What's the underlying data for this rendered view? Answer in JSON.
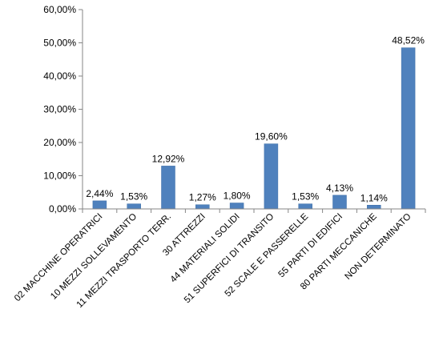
{
  "chart_data": {
    "type": "bar",
    "categories": [
      "02 MACCHINE OPERATRICI",
      "10 MEZZI SOLLEVAMENTO",
      "11 MEZZI TRASPORTO TERR.",
      "30 ATTREZZI",
      "44 MATERIALI SOLIDI",
      "51 SUPERFICI DI TRANSITO",
      "52 SCALE E PASSERELLE",
      "55 PARTI DI EDIFICI",
      "80 PARTI MECCANICHE",
      "NON DETERMINATO"
    ],
    "values": [
      2.44,
      1.53,
      12.92,
      1.27,
      1.8,
      19.6,
      1.53,
      4.13,
      1.14,
      48.52
    ],
    "data_labels": [
      "2,44%",
      "1,53%",
      "12,92%",
      "1,27%",
      "1,80%",
      "19,60%",
      "1,53%",
      "4,13%",
      "1,14%",
      "48,52%"
    ],
    "yticks": [
      0,
      10,
      20,
      30,
      40,
      50,
      60
    ],
    "ytick_labels": [
      "0,00%",
      "10,00%",
      "20,00%",
      "30,00%",
      "40,00%",
      "50,00%",
      "60,00%"
    ],
    "ylim": [
      0,
      60
    ],
    "title": "",
    "xlabel": "",
    "ylabel": "",
    "grid": false,
    "legend": "none",
    "bar_color": "#4F81BD",
    "axis_color": "#868686"
  }
}
